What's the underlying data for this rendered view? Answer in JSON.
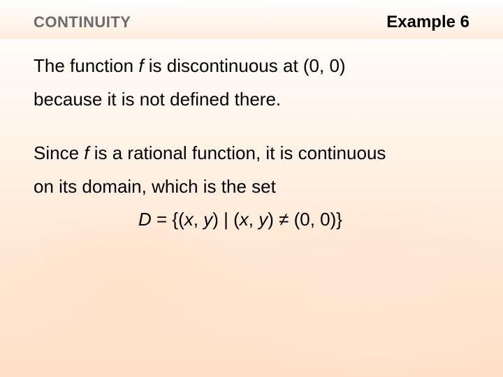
{
  "header": {
    "section_title": "CONTINUITY",
    "example_label": "Example 6",
    "section_title_color": "#6b6b6b",
    "section_title_fontsize": 22,
    "example_label_fontsize": 24
  },
  "body": {
    "fontsize": 26,
    "line1_a": "The function ",
    "line1_f": "f",
    "line1_b": " is discontinuous at (0, 0)",
    "line2": "because it is not defined there.",
    "line3_a": "Since ",
    "line3_f": "f",
    "line3_b": " is a rational function, it is continuous",
    "line4": "on its domain, which is the set",
    "set_a": "D",
    "set_b": " = {(",
    "set_x1": "x",
    "set_c": ", ",
    "set_y1": "y",
    "set_d": ") | (",
    "set_x2": "x",
    "set_e": ", ",
    "set_y2": "y",
    "set_f": ") ≠ (0, 0)}"
  },
  "style": {
    "bg_top": "#ffffff",
    "bg_mid": "#ffe9d6",
    "bg_bottom": "#ffe0c8"
  }
}
